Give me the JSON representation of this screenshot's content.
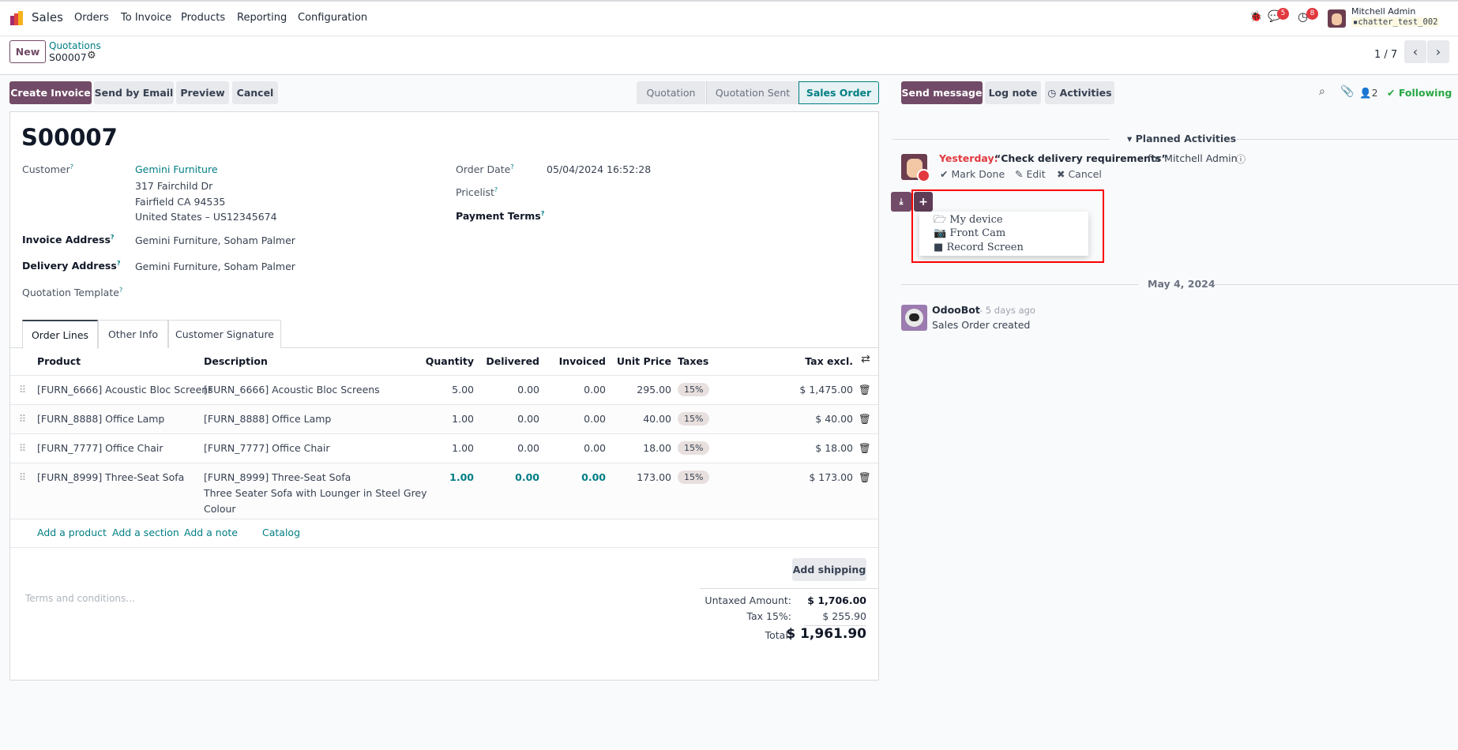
{
  "nav": {
    "app": "Sales",
    "menu": [
      "Orders",
      "To Invoice",
      "Products",
      "Reporting",
      "Configuration"
    ],
    "chat_count": "5",
    "activity_count": "8",
    "user": "Mitchell Admin",
    "db": "chatter_test_002"
  },
  "control": {
    "new_label": "New",
    "breadcrumb_parent": "Quotations",
    "breadcrumb_current": "S00007",
    "pager": "1 / 7"
  },
  "actions": {
    "create_invoice": "Create Invoice",
    "send_email": "Send by Email",
    "preview": "Preview",
    "cancel": "Cancel"
  },
  "statusbar": {
    "steps": [
      "Quotation",
      "Quotation Sent",
      "Sales Order"
    ],
    "active": "Sales Order"
  },
  "form": {
    "title": "S00007",
    "customer_label": "Customer",
    "customer": "Gemini Furniture",
    "address": [
      "317 Fairchild Dr",
      "Fairfield CA 94535",
      "United States – US12345674"
    ],
    "invoice_label": "Invoice Address",
    "invoice_address": "Gemini Furniture, Soham Palmer",
    "delivery_label": "Delivery Address",
    "delivery_address": "Gemini Furniture, Soham Palmer",
    "template_label": "Quotation Template",
    "order_date_label": "Order Date",
    "order_date": "05/04/2024 16:52:28",
    "pricelist_label": "Pricelist",
    "payment_terms_label": "Payment Terms",
    "help": "?"
  },
  "tabs": [
    "Order Lines",
    "Other Info",
    "Customer Signature"
  ],
  "table": {
    "headers": [
      "Product",
      "Description",
      "Quantity",
      "Delivered",
      "Invoiced",
      "Unit Price",
      "Taxes",
      "Tax excl."
    ],
    "rows": [
      {
        "product": "[FURN_6666] Acoustic Bloc Screens",
        "desc": "[FURN_6666] Acoustic Bloc Screens",
        "desc2": "",
        "desc3": "",
        "qty": "5.00",
        "delivered": "0.00",
        "invoiced": "0.00",
        "price": "295.00",
        "tax": "15%",
        "total": "$ 1,475.00"
      },
      {
        "product": "[FURN_8888] Office Lamp",
        "desc": "[FURN_8888] Office Lamp",
        "desc2": "",
        "desc3": "",
        "qty": "1.00",
        "delivered": "0.00",
        "invoiced": "0.00",
        "price": "40.00",
        "tax": "15%",
        "total": "$ 40.00"
      },
      {
        "product": "[FURN_7777] Office Chair",
        "desc": "[FURN_7777] Office Chair",
        "desc2": "",
        "desc3": "",
        "qty": "1.00",
        "delivered": "0.00",
        "invoiced": "0.00",
        "price": "18.00",
        "tax": "15%",
        "total": "$ 18.00"
      },
      {
        "product": "[FURN_8999] Three-Seat Sofa",
        "desc": "[FURN_8999] Three-Seat Sofa",
        "desc2": "Three Seater Sofa with Lounger in Steel Grey",
        "desc3": "Colour",
        "qty": "1.00",
        "delivered": "0.00",
        "invoiced": "0.00",
        "price": "173.00",
        "tax": "15%",
        "total": "$ 173.00"
      }
    ],
    "add": [
      "Add a product",
      "Add a section",
      "Add a note",
      "Catalog"
    ]
  },
  "footer": {
    "add_shipping": "Add shipping",
    "terms_placeholder": "Terms and conditions...",
    "untaxed_label": "Untaxed Amount:",
    "untaxed": "$ 1,706.00",
    "tax_label": "Tax 15%:",
    "tax": "$ 255.90",
    "total_label": "Total:",
    "total": "$ 1,961.90"
  },
  "chatter": {
    "send_message": "Send message",
    "log_note": "Log note",
    "activities": "Activities",
    "followers": "2",
    "following": "Following",
    "planned_title": "Planned Activities",
    "activity": {
      "when": "Yesterday:",
      "summary": "“Check delivery requirements”",
      "for": "for Mitchell Admin",
      "mark_done": "Mark Done",
      "edit": "Edit",
      "cancel": "Cancel"
    },
    "upload_menu": [
      "My device",
      "Front Cam",
      "Record Screen"
    ],
    "date_sep": "May 4, 2024",
    "message": {
      "author": "OdooBot",
      "time": "- 5 days ago",
      "body": "Sales Order created"
    }
  },
  "colors": {
    "primary": "#714b67",
    "link": "#017e84",
    "danger": "#e2383f",
    "success": "#28a745",
    "highlight": "#ff0000"
  }
}
